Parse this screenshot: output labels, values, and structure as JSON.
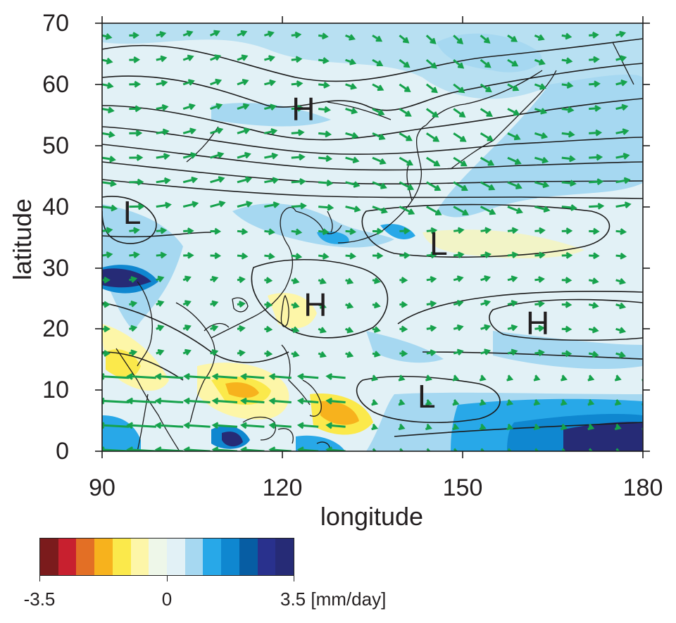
{
  "axes": {
    "xlabel": "longitude",
    "ylabel": "latitude",
    "xlim": [
      90,
      180
    ],
    "ylim": [
      0,
      70
    ],
    "xticks": [
      "90",
      "120",
      "150",
      "180"
    ],
    "yticks": [
      "0",
      "10",
      "20",
      "30",
      "40",
      "50",
      "60",
      "70"
    ]
  },
  "pressure_markers": [
    {
      "text": "H",
      "lon": 123.5,
      "lat": 56
    },
    {
      "text": "L",
      "lon": 95,
      "lat": 39
    },
    {
      "text": "L",
      "lon": 146,
      "lat": 34
    },
    {
      "text": "H",
      "lon": 125.5,
      "lat": 24
    },
    {
      "text": "H",
      "lon": 162.5,
      "lat": 21
    },
    {
      "text": "L",
      "lon": 144,
      "lat": 9
    }
  ],
  "colorbar": {
    "colors": [
      "#7b1b1c",
      "#c8202f",
      "#e36f25",
      "#f7b21d",
      "#fbe94b",
      "#fdf6a8",
      "#eef7e9",
      "#e2f1f6",
      "#a6d8f1",
      "#28a8e8",
      "#0f87d0",
      "#075da3",
      "#29318d",
      "#262b76"
    ],
    "min_label": "-3.5",
    "mid_label": "0",
    "max_label": "3.5",
    "unit": "[mm/day]"
  },
  "colors": {
    "land_outline": "#1c1c1c",
    "contour": "#1c1c1c",
    "wind_vector": "#16a24c"
  }
}
